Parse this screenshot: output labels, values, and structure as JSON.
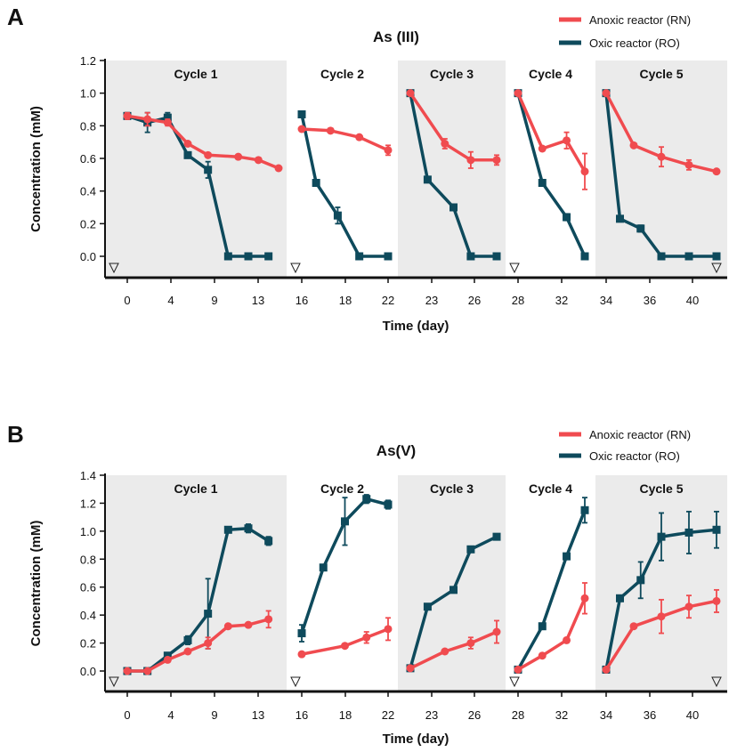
{
  "figure": {
    "colors": {
      "anoxic": "#f04b4f",
      "oxic": "#0e4a5c",
      "shade": "#ebebeb"
    }
  },
  "chart_data": [
    {
      "type": "line",
      "panel": "A",
      "title": "As (III)",
      "xlabel": "Time (day)",
      "ylabel": "Concentration (mM)",
      "ylim": [
        0,
        1.2
      ],
      "yticks": [
        "0.0",
        "0.2",
        "0.4",
        "0.6",
        "0.8",
        "1.0",
        "1.2"
      ],
      "xticks": [
        "0",
        "4",
        "9",
        "13",
        "16",
        "18",
        "22",
        "23",
        "26",
        "28",
        "32",
        "34",
        "36",
        "40"
      ],
      "legend": "top-right",
      "cycles": [
        {
          "label": "Cycle 1",
          "shaded": true,
          "ticks": [
            "0",
            "4",
            "9",
            "13"
          ],
          "start_marker": true,
          "end_marker": false,
          "anoxic": [
            {
              "x": 0,
              "y": 0.86,
              "e": 0.02
            },
            {
              "x": 2,
              "y": 0.84,
              "e": 0.04
            },
            {
              "x": 4,
              "y": 0.82,
              "e": 0.02
            },
            {
              "x": 6,
              "y": 0.69,
              "e": 0.01
            },
            {
              "x": 8,
              "y": 0.62,
              "e": 0.01
            },
            {
              "x": 11,
              "y": 0.61,
              "e": 0.01
            },
            {
              "x": 13,
              "y": 0.59,
              "e": 0.01
            },
            {
              "x": 15,
              "y": 0.54,
              "e": 0.01
            }
          ],
          "oxic": [
            {
              "x": 0,
              "y": 0.86,
              "e": 0.02
            },
            {
              "x": 2,
              "y": 0.82,
              "e": 0.06
            },
            {
              "x": 4,
              "y": 0.85,
              "e": 0.03
            },
            {
              "x": 6,
              "y": 0.62,
              "e": 0.01
            },
            {
              "x": 8,
              "y": 0.53,
              "e": 0.05
            },
            {
              "x": 10,
              "y": 0.0,
              "e": 0
            },
            {
              "x": 12,
              "y": 0.0,
              "e": 0
            },
            {
              "x": 14,
              "y": 0.0,
              "e": 0
            }
          ]
        },
        {
          "label": "Cycle 2",
          "shaded": false,
          "ticks": [
            "16",
            "18",
            "22"
          ],
          "start_marker": true,
          "end_marker": false,
          "anoxic": [
            {
              "x": 16,
              "y": 0.78,
              "e": 0.01
            },
            {
              "x": 18,
              "y": 0.77,
              "e": 0.01
            },
            {
              "x": 20,
              "y": 0.73,
              "e": 0.01
            },
            {
              "x": 22,
              "y": 0.65,
              "e": 0.03
            }
          ],
          "oxic": [
            {
              "x": 16,
              "y": 0.87,
              "e": 0.01
            },
            {
              "x": 17,
              "y": 0.45,
              "e": 0.01
            },
            {
              "x": 18.5,
              "y": 0.25,
              "e": 0.05
            },
            {
              "x": 20,
              "y": 0.0,
              "e": 0
            },
            {
              "x": 22,
              "y": 0.0,
              "e": 0
            }
          ]
        },
        {
          "label": "Cycle 3",
          "shaded": true,
          "ticks": [
            "23",
            "26"
          ],
          "start_marker": false,
          "end_marker": false,
          "anoxic": [
            {
              "x": 22,
              "y": 1.0,
              "e": 0.01
            },
            {
              "x": 24,
              "y": 0.69,
              "e": 0.03
            },
            {
              "x": 25.5,
              "y": 0.59,
              "e": 0.05
            },
            {
              "x": 27,
              "y": 0.59,
              "e": 0.03
            }
          ],
          "oxic": [
            {
              "x": 22,
              "y": 1.0,
              "e": 0.01
            },
            {
              "x": 23,
              "y": 0.47,
              "e": 0.01
            },
            {
              "x": 24.5,
              "y": 0.3,
              "e": 0.01
            },
            {
              "x": 25.5,
              "y": 0.0,
              "e": 0
            },
            {
              "x": 27,
              "y": 0.0,
              "e": 0
            }
          ]
        },
        {
          "label": "Cycle 4",
          "shaded": false,
          "ticks": [
            "28",
            "32"
          ],
          "start_marker": true,
          "end_marker": false,
          "anoxic": [
            {
              "x": 28,
              "y": 1.0,
              "e": 0.01
            },
            {
              "x": 30,
              "y": 0.66,
              "e": 0.01
            },
            {
              "x": 32,
              "y": 0.71,
              "e": 0.05
            },
            {
              "x": 33.5,
              "y": 0.52,
              "e": 0.11
            }
          ],
          "oxic": [
            {
              "x": 28,
              "y": 1.0,
              "e": 0.01
            },
            {
              "x": 30,
              "y": 0.45,
              "e": 0.01
            },
            {
              "x": 32,
              "y": 0.24,
              "e": 0.02
            },
            {
              "x": 33.5,
              "y": 0.0,
              "e": 0
            }
          ]
        },
        {
          "label": "Cycle 5",
          "shaded": true,
          "ticks": [
            "34",
            "36",
            "40"
          ],
          "start_marker": false,
          "end_marker": true,
          "anoxic": [
            {
              "x": 34,
              "y": 1.0,
              "e": 0.01
            },
            {
              "x": 36,
              "y": 0.68,
              "e": 0.01
            },
            {
              "x": 38,
              "y": 0.61,
              "e": 0.06
            },
            {
              "x": 40,
              "y": 0.56,
              "e": 0.03
            },
            {
              "x": 42,
              "y": 0.52,
              "e": 0.01
            }
          ],
          "oxic": [
            {
              "x": 34,
              "y": 1.0,
              "e": 0.01
            },
            {
              "x": 35,
              "y": 0.23,
              "e": 0.01
            },
            {
              "x": 36.5,
              "y": 0.17,
              "e": 0.02
            },
            {
              "x": 38,
              "y": 0.0,
              "e": 0
            },
            {
              "x": 40,
              "y": 0.0,
              "e": 0
            },
            {
              "x": 42,
              "y": 0.0,
              "e": 0
            }
          ]
        }
      ],
      "series": [
        {
          "name": "Anoxic reactor (RN)",
          "key": "anoxic"
        },
        {
          "name": "Oxic reactor (RO)",
          "key": "oxic"
        }
      ]
    },
    {
      "type": "line",
      "panel": "B",
      "title": "As(V)",
      "xlabel": "Time (day)",
      "ylabel": "Concentration (mM)",
      "ylim": [
        0,
        1.4
      ],
      "yticks": [
        "0.0",
        "0.2",
        "0.4",
        "0.6",
        "0.8",
        "1.0",
        "1.2",
        "1.4"
      ],
      "xticks": [
        "0",
        "4",
        "9",
        "13",
        "16",
        "18",
        "22",
        "23",
        "26",
        "28",
        "32",
        "34",
        "36",
        "40"
      ],
      "legend": "top-right",
      "cycles": [
        {
          "label": "Cycle 1",
          "shaded": true,
          "ticks": [
            "0",
            "4",
            "9",
            "13"
          ],
          "start_marker": true,
          "end_marker": false,
          "anoxic": [
            {
              "x": 0,
              "y": 0.0,
              "e": 0.01
            },
            {
              "x": 2,
              "y": 0.0,
              "e": 0.01
            },
            {
              "x": 4,
              "y": 0.08,
              "e": 0.01
            },
            {
              "x": 6,
              "y": 0.14,
              "e": 0.01
            },
            {
              "x": 8,
              "y": 0.2,
              "e": 0.04
            },
            {
              "x": 10,
              "y": 0.32,
              "e": 0.01
            },
            {
              "x": 12,
              "y": 0.33,
              "e": 0.01
            },
            {
              "x": 14,
              "y": 0.37,
              "e": 0.06
            }
          ],
          "oxic": [
            {
              "x": 0,
              "y": 0.0,
              "e": 0.01
            },
            {
              "x": 2,
              "y": 0.0,
              "e": 0.01
            },
            {
              "x": 4,
              "y": 0.11,
              "e": 0.01
            },
            {
              "x": 6,
              "y": 0.22,
              "e": 0.03
            },
            {
              "x": 8,
              "y": 0.41,
              "e": 0.25
            },
            {
              "x": 10,
              "y": 1.01,
              "e": 0.02
            },
            {
              "x": 12,
              "y": 1.02,
              "e": 0.03
            },
            {
              "x": 14,
              "y": 0.93,
              "e": 0.03
            }
          ]
        },
        {
          "label": "Cycle 2",
          "shaded": false,
          "ticks": [
            "16",
            "18",
            "22"
          ],
          "start_marker": true,
          "end_marker": false,
          "anoxic": [
            {
              "x": 16,
              "y": 0.12,
              "e": 0.01
            },
            {
              "x": 19,
              "y": 0.18,
              "e": 0.01
            },
            {
              "x": 20.5,
              "y": 0.24,
              "e": 0.04
            },
            {
              "x": 22,
              "y": 0.3,
              "e": 0.08
            }
          ],
          "oxic": [
            {
              "x": 16,
              "y": 0.27,
              "e": 0.06
            },
            {
              "x": 17.5,
              "y": 0.74,
              "e": 0.02
            },
            {
              "x": 19,
              "y": 1.07,
              "e": 0.17
            },
            {
              "x": 20.5,
              "y": 1.23,
              "e": 0.03
            },
            {
              "x": 22,
              "y": 1.19,
              "e": 0.03
            }
          ]
        },
        {
          "label": "Cycle 3",
          "shaded": true,
          "ticks": [
            "23",
            "26"
          ],
          "start_marker": false,
          "end_marker": false,
          "anoxic": [
            {
              "x": 22,
              "y": 0.02,
              "e": 0.01
            },
            {
              "x": 24,
              "y": 0.14,
              "e": 0.01
            },
            {
              "x": 25.5,
              "y": 0.2,
              "e": 0.04
            },
            {
              "x": 27,
              "y": 0.28,
              "e": 0.08
            }
          ],
          "oxic": [
            {
              "x": 22,
              "y": 0.02,
              "e": 0.01
            },
            {
              "x": 23,
              "y": 0.46,
              "e": 0.01
            },
            {
              "x": 24.5,
              "y": 0.58,
              "e": 0.01
            },
            {
              "x": 25.5,
              "y": 0.87,
              "e": 0.01
            },
            {
              "x": 27,
              "y": 0.96,
              "e": 0.01
            }
          ]
        },
        {
          "label": "Cycle 4",
          "shaded": false,
          "ticks": [
            "28",
            "32"
          ],
          "start_marker": true,
          "end_marker": false,
          "anoxic": [
            {
              "x": 28,
              "y": 0.01,
              "e": 0.01
            },
            {
              "x": 30,
              "y": 0.11,
              "e": 0.01
            },
            {
              "x": 32,
              "y": 0.22,
              "e": 0.01
            },
            {
              "x": 33.5,
              "y": 0.52,
              "e": 0.11
            }
          ],
          "oxic": [
            {
              "x": 28,
              "y": 0.01,
              "e": 0.01
            },
            {
              "x": 30,
              "y": 0.32,
              "e": 0.01
            },
            {
              "x": 32,
              "y": 0.82,
              "e": 0.01
            },
            {
              "x": 33.5,
              "y": 1.15,
              "e": 0.09
            }
          ]
        },
        {
          "label": "Cycle 5",
          "shaded": true,
          "ticks": [
            "34",
            "36",
            "40"
          ],
          "start_marker": false,
          "end_marker": true,
          "anoxic": [
            {
              "x": 34,
              "y": 0.01,
              "e": 0.01
            },
            {
              "x": 36,
              "y": 0.32,
              "e": 0.01
            },
            {
              "x": 38,
              "y": 0.39,
              "e": 0.12
            },
            {
              "x": 40,
              "y": 0.46,
              "e": 0.08
            },
            {
              "x": 42,
              "y": 0.5,
              "e": 0.08
            }
          ],
          "oxic": [
            {
              "x": 34,
              "y": 0.01,
              "e": 0.01
            },
            {
              "x": 35,
              "y": 0.52,
              "e": 0.01
            },
            {
              "x": 36.5,
              "y": 0.65,
              "e": 0.13
            },
            {
              "x": 38,
              "y": 0.96,
              "e": 0.17
            },
            {
              "x": 40,
              "y": 0.99,
              "e": 0.15
            },
            {
              "x": 42,
              "y": 1.01,
              "e": 0.13
            }
          ]
        }
      ],
      "series": [
        {
          "name": "Anoxic reactor (RN)",
          "key": "anoxic"
        },
        {
          "name": "Oxic reactor (RO)",
          "key": "oxic"
        }
      ]
    }
  ]
}
